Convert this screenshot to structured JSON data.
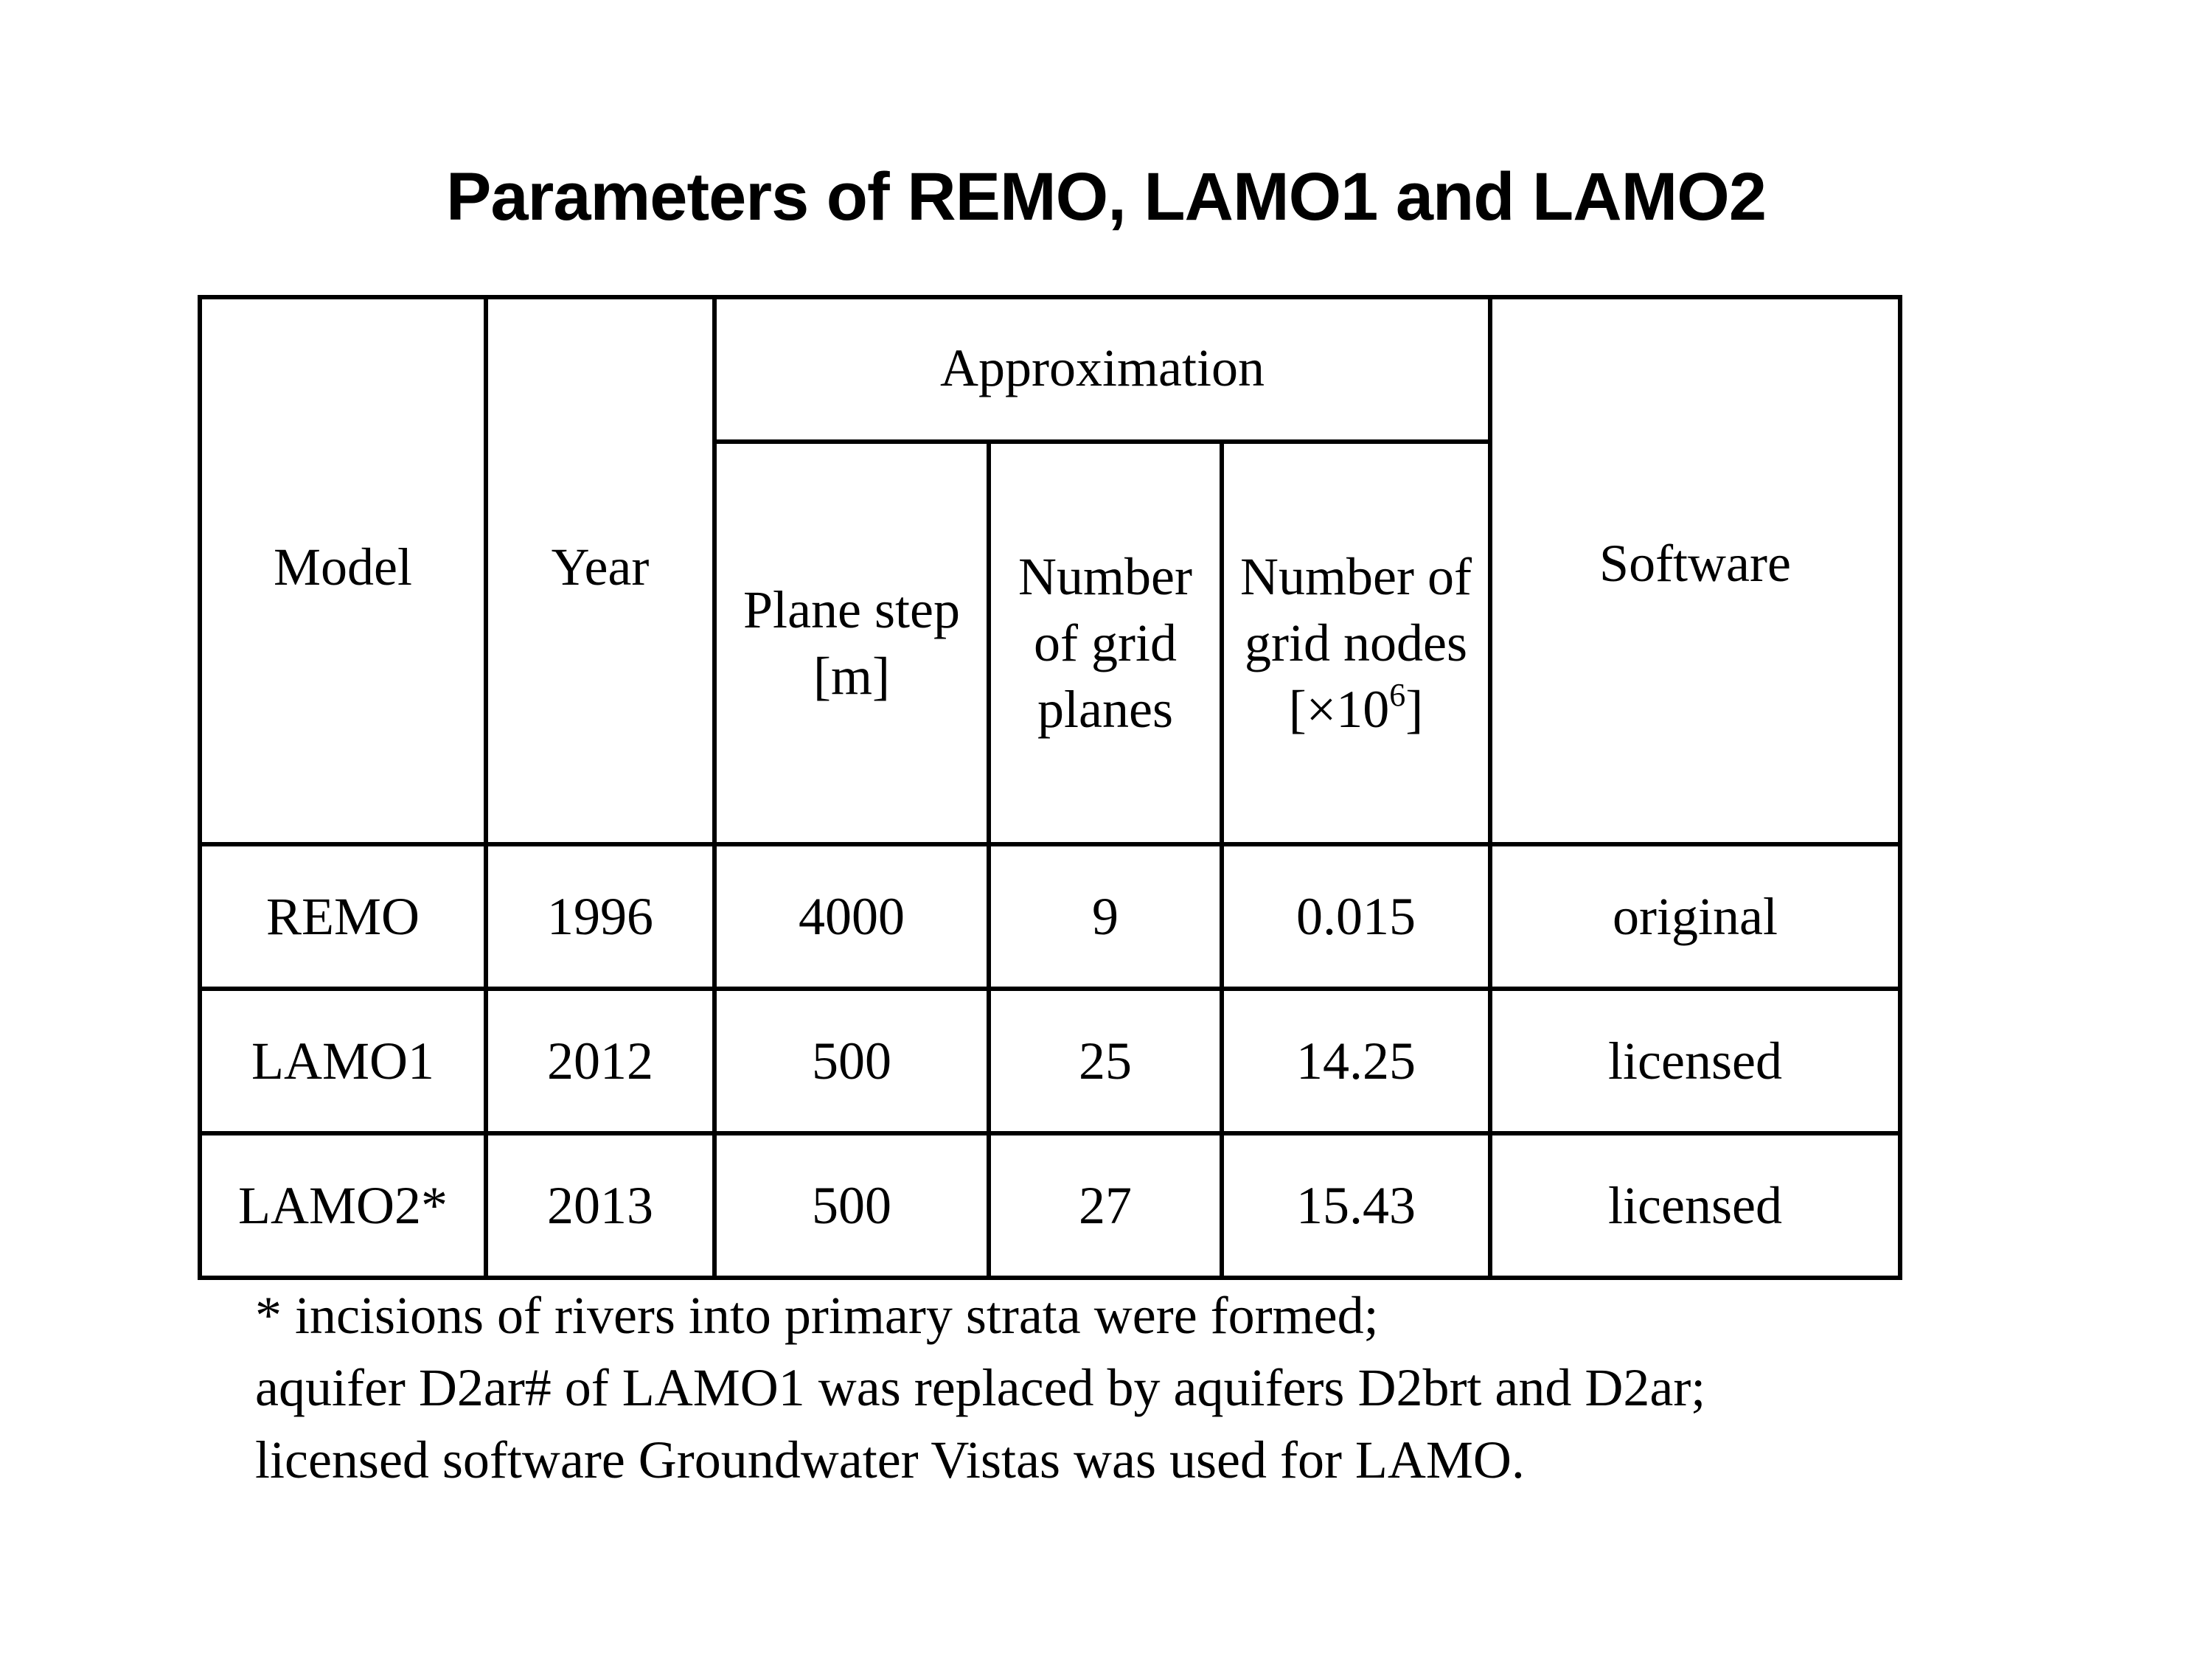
{
  "title": "Parameters of REMO, LAMO1 and LAMO2",
  "table": {
    "header": {
      "model": "Model",
      "year": "Year",
      "approximation": "Approximation",
      "plane_step_line1": "Plane step",
      "plane_step_line2": "[m]",
      "grid_planes_line1": "Number",
      "grid_planes_line2": "of grid",
      "grid_planes_line3": "planes",
      "grid_nodes_line1": "Number of",
      "grid_nodes_line2": "grid nodes",
      "grid_nodes_unit_prefix": "[×10",
      "grid_nodes_unit_exp": "6",
      "grid_nodes_unit_suffix": "]",
      "software": "Software"
    },
    "rows": [
      {
        "model": "REMO",
        "year": "1996",
        "plane_step": "4000",
        "grid_planes": "9",
        "grid_nodes": "0.015",
        "software": "original"
      },
      {
        "model": "LAMO1",
        "year": "2012",
        "plane_step": "500",
        "grid_planes": "25",
        "grid_nodes": "14.25",
        "software": "licensed"
      },
      {
        "model": "LAMO2*",
        "year": "2013",
        "plane_step": "500",
        "grid_planes": "27",
        "grid_nodes": "15.43",
        "software": "licensed"
      }
    ]
  },
  "footnote": {
    "line1": "*  incisions of rivers into primary strata were formed;",
    "line2": "aquifer D2ar# of LAMO1 was replaced by aquifers D2brt and D2ar;",
    "line3": "licensed software Groundwater Vistas was used for LAMO."
  }
}
